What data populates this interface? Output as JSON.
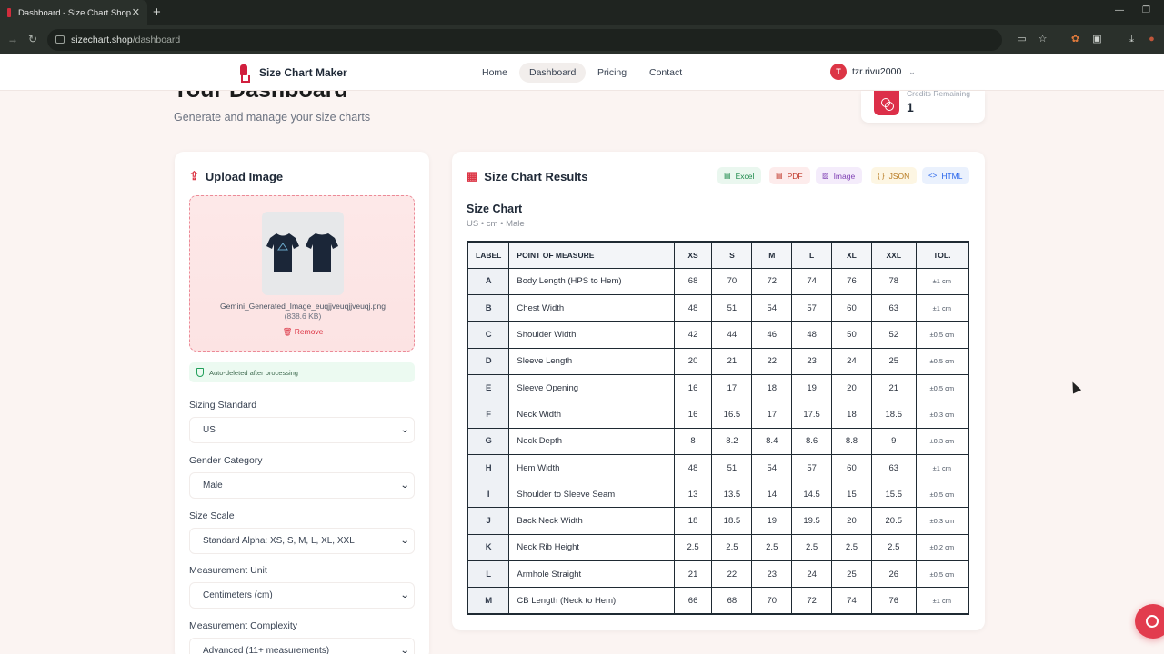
{
  "browser": {
    "tab_title": "Dashboard - Size Chart Shop",
    "new_tab": "+",
    "url_host": "sizechart.shop",
    "url_path": "/dashboard"
  },
  "header": {
    "brand": "Size Chart Maker",
    "nav": [
      "Home",
      "Dashboard",
      "Pricing",
      "Contact"
    ],
    "active_nav": "Dashboard",
    "user_initial": "T",
    "user_name": "tzr.rivu2000"
  },
  "page": {
    "title": "Your Dashboard",
    "subtitle": "Generate and manage your size charts"
  },
  "credits": {
    "label": "Credits Remaining",
    "value": "1"
  },
  "upload": {
    "title": "Upload Image",
    "file_name": "Gemini_Generated_Image_euqjjveuqjjveuqj.png",
    "file_size": "(838.6 KB)",
    "remove_label": "Remove",
    "auto_delete_note": "Auto-deleted after processing"
  },
  "form": {
    "sizing_standard": {
      "label": "Sizing Standard",
      "value": "US"
    },
    "gender_category": {
      "label": "Gender Category",
      "value": "Male"
    },
    "size_scale": {
      "label": "Size Scale",
      "value": "Standard Alpha: XS, S, M, L, XL, XXL"
    },
    "measurement_unit": {
      "label": "Measurement Unit",
      "value": "Centimeters (cm)"
    },
    "measurement_complexity": {
      "label": "Measurement Complexity",
      "value": "Advanced (11+ measurements)"
    }
  },
  "results": {
    "title": "Size Chart Results",
    "exports": [
      {
        "label": "Excel",
        "icon": "excel-icon",
        "color": "#1e8a4c",
        "bg": "#eaf7ef"
      },
      {
        "label": "PDF",
        "icon": "pdf-icon",
        "color": "#c0392b",
        "bg": "#fdecec"
      },
      {
        "label": "Image",
        "icon": "image-icon",
        "color": "#7e3fb3",
        "bg": "#f4ecfb"
      },
      {
        "label": "JSON",
        "icon": "json-icon",
        "color": "#b7791f",
        "bg": "#fdf6e3"
      },
      {
        "label": "HTML",
        "icon": "html-icon",
        "color": "#2563eb",
        "bg": "#eaf1fd"
      }
    ],
    "chart_title": "Size Chart",
    "chart_subtitle": "US • cm • Male"
  },
  "table": {
    "headers": [
      "LABEL",
      "POINT OF MEASURE",
      "XS",
      "S",
      "M",
      "L",
      "XL",
      "XXL",
      "TOL."
    ],
    "rows": [
      [
        "A",
        "Body Length (HPS to Hem)",
        "68",
        "70",
        "72",
        "74",
        "76",
        "78",
        "±1 cm"
      ],
      [
        "B",
        "Chest Width",
        "48",
        "51",
        "54",
        "57",
        "60",
        "63",
        "±1 cm"
      ],
      [
        "C",
        "Shoulder Width",
        "42",
        "44",
        "46",
        "48",
        "50",
        "52",
        "±0.5 cm"
      ],
      [
        "D",
        "Sleeve Length",
        "20",
        "21",
        "22",
        "23",
        "24",
        "25",
        "±0.5 cm"
      ],
      [
        "E",
        "Sleeve Opening",
        "16",
        "17",
        "18",
        "19",
        "20",
        "21",
        "±0.5 cm"
      ],
      [
        "F",
        "Neck Width",
        "16",
        "16.5",
        "17",
        "17.5",
        "18",
        "18.5",
        "±0.3 cm"
      ],
      [
        "G",
        "Neck Depth",
        "8",
        "8.2",
        "8.4",
        "8.6",
        "8.8",
        "9",
        "±0.3 cm"
      ],
      [
        "H",
        "Hem Width",
        "48",
        "51",
        "54",
        "57",
        "60",
        "63",
        "±1 cm"
      ],
      [
        "I",
        "Shoulder to Sleeve Seam",
        "13",
        "13.5",
        "14",
        "14.5",
        "15",
        "15.5",
        "±0.5 cm"
      ],
      [
        "J",
        "Back Neck Width",
        "18",
        "18.5",
        "19",
        "19.5",
        "20",
        "20.5",
        "±0.3 cm"
      ],
      [
        "K",
        "Neck Rib Height",
        "2.5",
        "2.5",
        "2.5",
        "2.5",
        "2.5",
        "2.5",
        "±0.2 cm"
      ],
      [
        "L",
        "Armhole Straight",
        "21",
        "22",
        "23",
        "24",
        "25",
        "26",
        "±0.5 cm"
      ],
      [
        "M",
        "CB Length (Neck to Hem)",
        "66",
        "68",
        "70",
        "72",
        "74",
        "76",
        "±1 cm"
      ]
    ]
  }
}
